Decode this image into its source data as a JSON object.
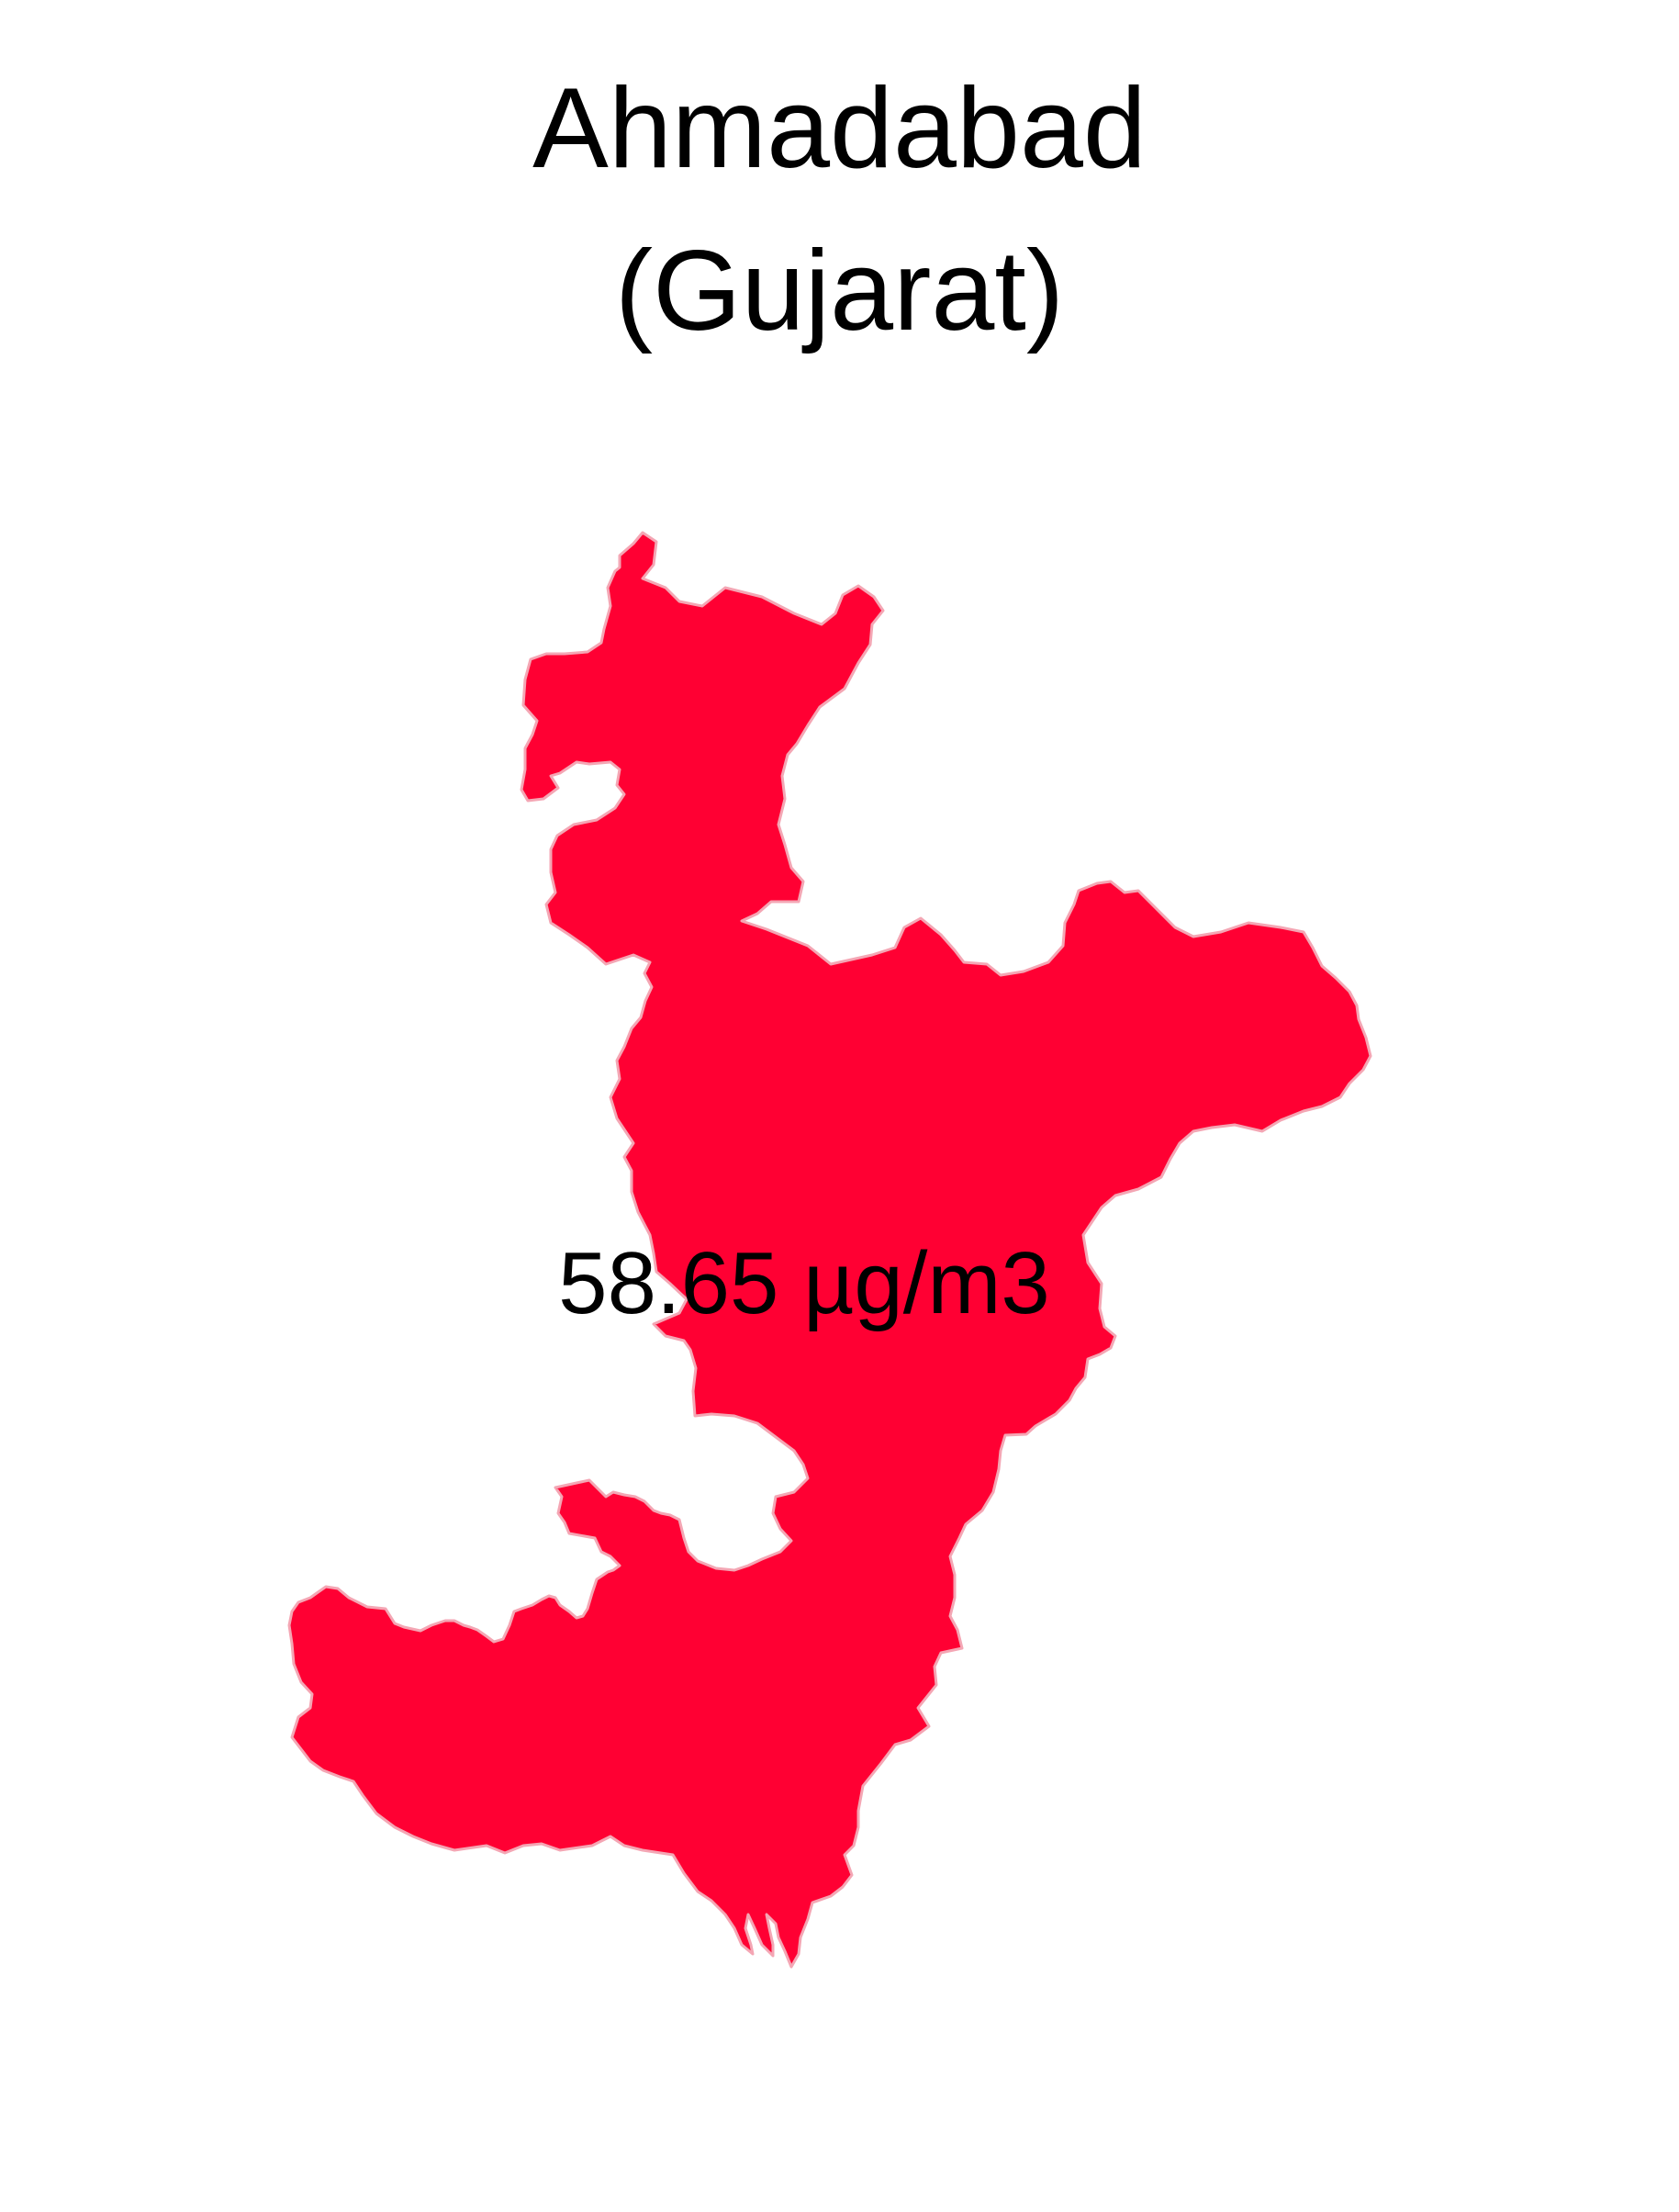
{
  "title": {
    "line1": "Ahmadabad",
    "line2": "(Gujarat)"
  },
  "region": {
    "name": "Ahmadabad",
    "state": "Gujarat",
    "fill_color": "#ff0033",
    "border_color": "#f4a6b4"
  },
  "value_label": "58.65 µg/m3"
}
